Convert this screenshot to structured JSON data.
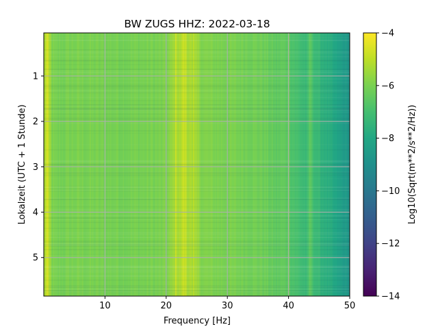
{
  "chart_data": {
    "type": "heatmap",
    "title": "BW ZUGS  HHZ: 2022-03-18",
    "xlabel": "Frequency [Hz]",
    "ylabel": "Lokalzeit (UTC + 1 Stunde)",
    "xlim": [
      0,
      50
    ],
    "ylim": [
      5.85,
      0.05
    ],
    "y_inverted": true,
    "grid": true,
    "grid_color": "#b0b0b0",
    "x_ticks": [
      10,
      20,
      30,
      40,
      50
    ],
    "x_tick_labels": [
      "10",
      "20",
      "30",
      "40",
      "50"
    ],
    "y_ticks": [
      1,
      2,
      3,
      4,
      5
    ],
    "y_tick_labels": [
      "1",
      "2",
      "3",
      "4",
      "5"
    ],
    "colormap": "viridis",
    "colorbar": {
      "label": "Log10(Sqrt(m**2/s**2/Hz))",
      "range": [
        -14,
        -4
      ],
      "ticks": [
        -14,
        -12,
        -10,
        -8,
        -6,
        -4
      ],
      "tick_labels": [
        "−14",
        "−12",
        "−10",
        "−8",
        "−6",
        "−4"
      ]
    },
    "spectrum_profile": {
      "frequency_hz": [
        0,
        0.5,
        1,
        2,
        5,
        10,
        15,
        20,
        21,
        21.5,
        22,
        22.5,
        23,
        24,
        25,
        26,
        30,
        34,
        36,
        38,
        39,
        40,
        42,
        43,
        43.5,
        45,
        47,
        49,
        50
      ],
      "log10_amplitude": [
        -5.4,
        -4.9,
        -5.9,
        -6.1,
        -6.0,
        -6.05,
        -6.05,
        -6.0,
        -5.6,
        -5.2,
        -5.7,
        -5.3,
        -5.2,
        -5.5,
        -5.5,
        -5.9,
        -6.0,
        -6.1,
        -6.2,
        -6.5,
        -6.4,
        -6.6,
        -7.1,
        -7.3,
        -6.8,
        -7.4,
        -7.9,
        -8.5,
        -8.7
      ]
    },
    "bright_lines_hz": [
      0.6,
      1.0,
      21.6,
      22.1,
      22.7,
      23.2,
      23.9,
      24.5,
      40.0,
      43.6
    ]
  }
}
